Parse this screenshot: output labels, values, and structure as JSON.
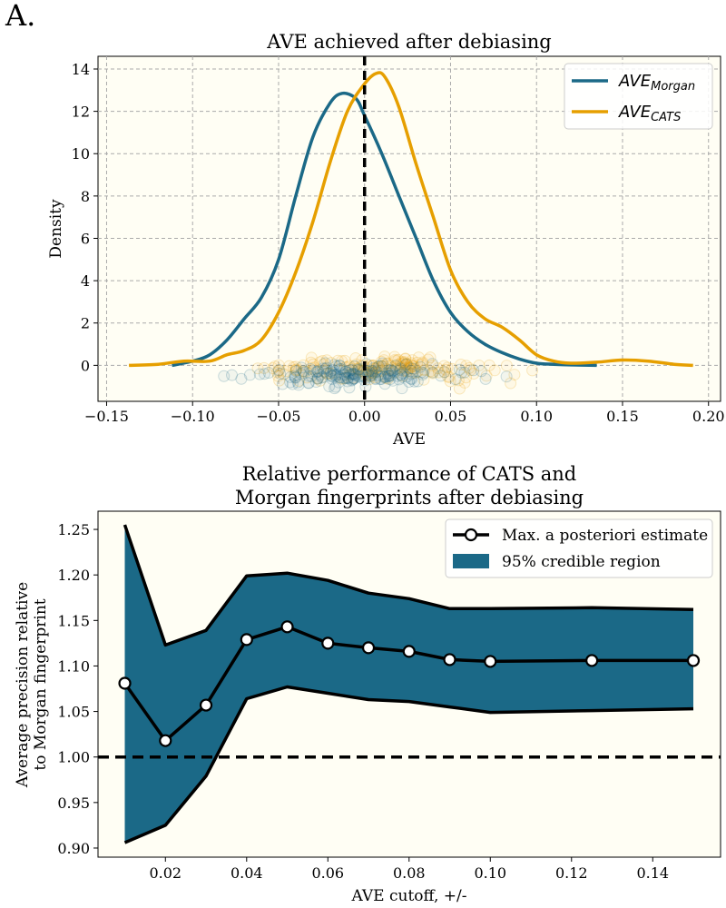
{
  "panel_label": "A.",
  "chart_data": [
    {
      "type": "line",
      "title": "AVE achieved after debiasing",
      "xlabel": "AVE",
      "ylabel": "Density",
      "xlim": [
        -0.155,
        0.207
      ],
      "ylim": [
        -1.7,
        14.6
      ],
      "xticks": [
        -0.15,
        -0.1,
        -0.05,
        0.0,
        0.05,
        0.1,
        0.15,
        0.2
      ],
      "xtick_labels": [
        "−0.15",
        "−0.10",
        "−0.05",
        "0.00",
        "0.05",
        "0.10",
        "0.15",
        "0.20"
      ],
      "yticks": [
        0,
        2,
        4,
        6,
        8,
        10,
        12,
        14
      ],
      "ytick_labels": [
        "0",
        "2",
        "4",
        "6",
        "8",
        "10",
        "12",
        "14"
      ],
      "grid": true,
      "background": "#fffef4",
      "legend_position": "top-right",
      "vline": {
        "x": 0,
        "style": "dashed",
        "color": "#000000"
      },
      "series": [
        {
          "name": "AVE_Morgan",
          "legend_base": "AVE",
          "legend_sub": "Morgan",
          "color": "#1b6987",
          "x": [
            -0.112,
            -0.1,
            -0.09,
            -0.08,
            -0.07,
            -0.06,
            -0.05,
            -0.04,
            -0.03,
            -0.02,
            -0.013,
            -0.005,
            0.0,
            0.01,
            0.02,
            0.03,
            0.04,
            0.05,
            0.06,
            0.07,
            0.08,
            0.09,
            0.1,
            0.11,
            0.12,
            0.135
          ],
          "y": [
            0.0,
            0.2,
            0.5,
            1.2,
            2.2,
            3.2,
            5.0,
            8.0,
            10.8,
            12.4,
            12.85,
            12.6,
            11.8,
            10.0,
            8.0,
            6.0,
            4.0,
            2.5,
            1.6,
            1.0,
            0.6,
            0.3,
            0.1,
            0.05,
            0.02,
            0.0
          ]
        },
        {
          "name": "AVE_CATS",
          "legend_base": "AVE",
          "legend_sub": "CATS",
          "color": "#e69f00",
          "x": [
            -0.137,
            -0.12,
            -0.105,
            -0.09,
            -0.08,
            -0.07,
            -0.06,
            -0.05,
            -0.04,
            -0.03,
            -0.02,
            -0.01,
            0.0,
            0.007,
            0.012,
            0.02,
            0.03,
            0.04,
            0.05,
            0.06,
            0.07,
            0.08,
            0.09,
            0.1,
            0.11,
            0.12,
            0.135,
            0.15,
            0.165,
            0.18,
            0.191
          ],
          "y": [
            0.0,
            0.05,
            0.2,
            0.2,
            0.5,
            0.7,
            1.2,
            2.5,
            4.4,
            6.8,
            9.6,
            12.0,
            13.3,
            13.8,
            13.6,
            12.2,
            9.5,
            7.0,
            4.5,
            3.0,
            2.2,
            1.8,
            1.2,
            0.5,
            0.2,
            0.1,
            0.15,
            0.25,
            0.2,
            0.05,
            0.0
          ]
        }
      ]
    },
    {
      "type": "line",
      "title_lines": [
        "Relative performance of CATS and",
        "Morgan fingerprints after debiasing"
      ],
      "xlabel": "AVE cutoff, +/-",
      "ylabel_lines": [
        "Average precision relative",
        "to Morgan fingerprint"
      ],
      "xlim": [
        0.0034,
        0.1567
      ],
      "ylim": [
        0.89,
        1.27
      ],
      "xticks": [
        0.02,
        0.04,
        0.06,
        0.08,
        0.1,
        0.12,
        0.14
      ],
      "xtick_labels": [
        "0.02",
        "0.04",
        "0.06",
        "0.08",
        "0.10",
        "0.12",
        "0.14"
      ],
      "yticks": [
        0.9,
        0.95,
        1.0,
        1.05,
        1.1,
        1.15,
        1.2,
        1.25
      ],
      "ytick_labels": [
        "0.90",
        "0.95",
        "1.00",
        "1.05",
        "1.10",
        "1.15",
        "1.20",
        "1.25"
      ],
      "grid": false,
      "background": "#fffef4",
      "legend_position": "top-right",
      "hline": {
        "y": 1.0,
        "style": "dashed",
        "color": "#000000"
      },
      "x": [
        0.01,
        0.02,
        0.03,
        0.04,
        0.05,
        0.06,
        0.07,
        0.08,
        0.09,
        0.1,
        0.125,
        0.15
      ],
      "series": [
        {
          "name": "Max. a posteriori estimate",
          "color": "#000000",
          "marker": "circle-white",
          "values": [
            1.081,
            1.018,
            1.057,
            1.129,
            1.143,
            1.125,
            1.12,
            1.116,
            1.107,
            1.105,
            1.106,
            1.106
          ]
        },
        {
          "name": "95% credible region",
          "color": "#1b6987",
          "type": "band",
          "lower": [
            0.906,
            0.925,
            0.979,
            1.064,
            1.077,
            1.07,
            1.063,
            1.061,
            1.055,
            1.049,
            1.051,
            1.053
          ],
          "upper": [
            1.255,
            1.123,
            1.139,
            1.199,
            1.202,
            1.194,
            1.18,
            1.174,
            1.163,
            1.163,
            1.164,
            1.162
          ]
        }
      ]
    }
  ]
}
